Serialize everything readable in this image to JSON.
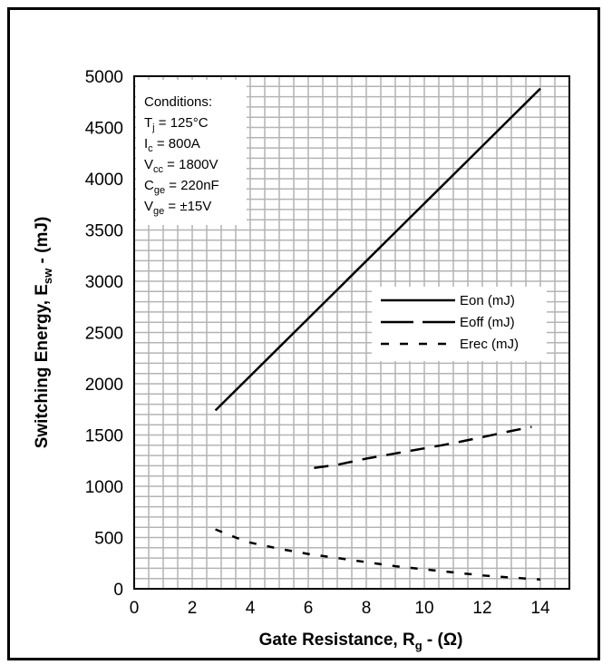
{
  "chart_data": {
    "type": "line",
    "xlabel": "Gate Resistance, R",
    "xlabel_sub": "g",
    "xlabel_suffix": " - (Ω)",
    "ylabel": "Switching Energy, E",
    "ylabel_sub": "sw",
    "ylabel_suffix": " - (mJ)",
    "xlim": [
      0,
      15
    ],
    "ylim": [
      0,
      5000
    ],
    "x_ticks": [
      0,
      2,
      4,
      6,
      8,
      10,
      12,
      14
    ],
    "y_ticks": [
      0,
      500,
      1000,
      1500,
      2000,
      2500,
      3000,
      3500,
      4000,
      4500,
      5000
    ],
    "grid": true,
    "legend_position": "right-middle",
    "series": [
      {
        "name": "Eon (mJ)",
        "style": "solid",
        "x": [
          2.8,
          14.0
        ],
        "y": [
          1740,
          4880
        ]
      },
      {
        "name": "Eoff (mJ)",
        "style": "long-dash",
        "x": [
          6.2,
          7,
          8,
          9,
          10,
          11,
          12,
          13,
          13.7
        ],
        "y": [
          1180,
          1210,
          1270,
          1320,
          1370,
          1420,
          1480,
          1540,
          1580
        ]
      },
      {
        "name": "Erec (mJ)",
        "style": "short-dash",
        "x": [
          2.8,
          3.5,
          4,
          5,
          6,
          7,
          8,
          9,
          10,
          11,
          12,
          13,
          14
        ],
        "y": [
          580,
          500,
          450,
          390,
          340,
          300,
          260,
          220,
          190,
          160,
          130,
          110,
          90
        ]
      }
    ],
    "conditions": {
      "title": "Conditions:",
      "lines": [
        {
          "label": "T",
          "sub": "j",
          "value": " = 125°C"
        },
        {
          "label": "I",
          "sub": "c",
          "value": " = 800A"
        },
        {
          "label": "V",
          "sub": "cc",
          "value": " = 1800V"
        },
        {
          "label": "C",
          "sub": "ge",
          "value": " = 220nF"
        },
        {
          "label": "V",
          "sub": "ge",
          "value": " = ±15V"
        }
      ]
    }
  },
  "colors": {
    "grid": "#b4b4b4",
    "line": "#000000",
    "background": "#ffffff"
  }
}
